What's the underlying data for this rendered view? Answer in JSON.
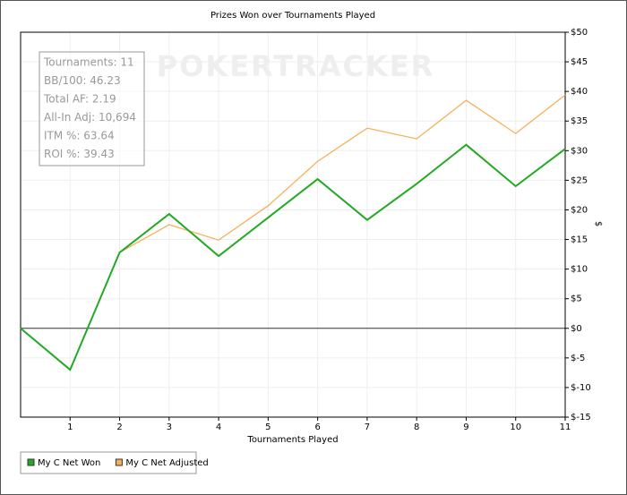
{
  "chart_data": {
    "type": "line",
    "title": "Prizes Won over Tournaments Played",
    "x_label": "Tournaments Played",
    "y_label": "$",
    "watermark": "POKERTRACKER",
    "stats": [
      "Tournaments: 11",
      "BB/100: 46.23",
      "Total AF: 2.19",
      "All-In Adj: 10,694",
      "ITM %: 63.64",
      "ROI %: 39.43"
    ],
    "x": [
      0,
      1,
      2,
      3,
      4,
      5,
      6,
      7,
      8,
      9,
      10,
      11
    ],
    "series": [
      {
        "name": "My C Net Adjusted",
        "color": "#f5b158",
        "values": [
          0,
          -7,
          12.8,
          17.5,
          14.9,
          20.7,
          28.2,
          33.8,
          32,
          38.5,
          32.9,
          39.4
        ]
      },
      {
        "name": "My C Net Won",
        "color": "#22aa22",
        "values": [
          0,
          -7,
          12.8,
          19.3,
          12.2,
          18.7,
          25.2,
          18.3,
          24.4,
          31,
          24,
          30.3
        ]
      }
    ],
    "legend_order": [
      1,
      0
    ],
    "xlim": [
      0,
      11
    ],
    "xticks": [
      1,
      2,
      3,
      4,
      5,
      6,
      7,
      8,
      9,
      10,
      11
    ],
    "ylim": [
      -15,
      50
    ],
    "yticks": [
      {
        "value": -15,
        "label": "$-15"
      },
      {
        "value": -10,
        "label": "$-10"
      },
      {
        "value": -5,
        "label": "$-5"
      },
      {
        "value": 0,
        "label": "$0"
      },
      {
        "value": 5,
        "label": "$5"
      },
      {
        "value": 10,
        "label": "$10"
      },
      {
        "value": 15,
        "label": "$15"
      },
      {
        "value": 20,
        "label": "$20"
      },
      {
        "value": 25,
        "label": "$25"
      },
      {
        "value": 30,
        "label": "$30"
      },
      {
        "value": 35,
        "label": "$35"
      },
      {
        "value": 40,
        "label": "$40"
      },
      {
        "value": 45,
        "label": "$45"
      },
      {
        "value": 50,
        "label": "$50"
      }
    ],
    "y_axis_side": "right",
    "grid": true
  }
}
